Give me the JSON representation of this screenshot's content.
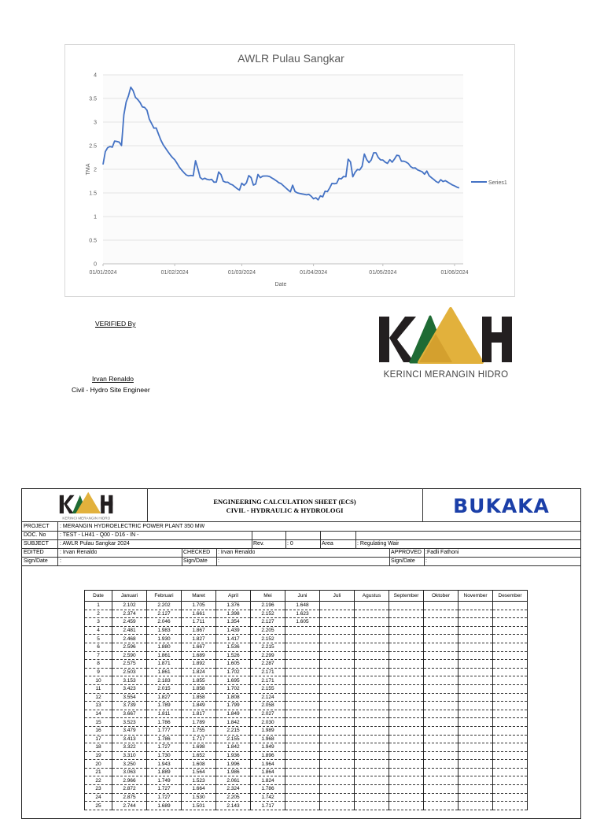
{
  "chart_data": {
    "type": "line",
    "title": "AWLR  Pulau Sangkar",
    "xlabel": "Date",
    "ylabel": "TMA",
    "ylim": [
      0,
      4
    ],
    "yticks": [
      "0",
      "0.5",
      "1",
      "1.5",
      "2",
      "2.5",
      "3",
      "3.5",
      "4"
    ],
    "xticks": [
      "01/01/2024",
      "01/02/2024",
      "01/03/2024",
      "01/04/2024",
      "01/05/2024",
      "01/06/2024"
    ],
    "grid": true,
    "legend": "right",
    "series": [
      {
        "name": "Series1",
        "color": "#4472c4",
        "x": [
          "2024-01-01",
          "2024-01-02",
          "2024-01-03",
          "2024-01-04",
          "2024-01-05",
          "2024-01-06",
          "2024-01-07",
          "2024-01-08",
          "2024-01-09",
          "2024-01-10",
          "2024-01-11",
          "2024-01-12",
          "2024-01-13",
          "2024-01-14",
          "2024-01-15",
          "2024-01-16",
          "2024-01-17",
          "2024-01-18",
          "2024-01-19",
          "2024-01-20",
          "2024-01-21",
          "2024-01-22",
          "2024-01-23",
          "2024-01-24",
          "2024-01-25",
          "2024-01-26",
          "2024-01-27",
          "2024-01-28",
          "2024-01-29",
          "2024-01-30",
          "2024-01-31",
          "2024-02-01",
          "2024-02-02",
          "2024-02-03",
          "2024-02-04",
          "2024-02-05",
          "2024-02-06",
          "2024-02-07",
          "2024-02-08",
          "2024-02-09",
          "2024-02-10",
          "2024-02-11",
          "2024-02-12",
          "2024-02-13",
          "2024-02-14",
          "2024-02-15",
          "2024-02-16",
          "2024-02-17",
          "2024-02-18",
          "2024-02-19",
          "2024-02-20",
          "2024-02-21",
          "2024-02-22",
          "2024-02-23",
          "2024-02-24",
          "2024-02-25",
          "2024-02-26",
          "2024-02-27",
          "2024-02-28",
          "2024-02-29",
          "2024-03-01",
          "2024-03-02",
          "2024-03-03",
          "2024-03-04",
          "2024-03-05",
          "2024-03-06",
          "2024-03-07",
          "2024-03-08",
          "2024-03-09",
          "2024-03-10",
          "2024-03-11",
          "2024-03-12",
          "2024-03-13",
          "2024-03-14",
          "2024-03-15",
          "2024-03-16",
          "2024-03-17",
          "2024-03-18",
          "2024-03-19",
          "2024-03-20",
          "2024-03-21",
          "2024-03-22",
          "2024-03-23",
          "2024-03-24",
          "2024-03-25",
          "2024-03-26",
          "2024-03-27",
          "2024-03-28",
          "2024-03-29",
          "2024-03-30",
          "2024-03-31",
          "2024-04-01",
          "2024-04-02",
          "2024-04-03",
          "2024-04-04",
          "2024-04-05",
          "2024-04-06",
          "2024-04-07",
          "2024-04-08",
          "2024-04-09",
          "2024-04-10",
          "2024-04-11",
          "2024-04-12",
          "2024-04-13",
          "2024-04-14",
          "2024-04-15",
          "2024-04-16",
          "2024-04-17",
          "2024-04-18",
          "2024-04-19",
          "2024-04-20",
          "2024-04-21",
          "2024-04-22",
          "2024-04-23",
          "2024-04-24",
          "2024-04-25",
          "2024-04-26",
          "2024-04-27",
          "2024-04-28",
          "2024-04-29",
          "2024-04-30",
          "2024-05-01",
          "2024-05-02",
          "2024-05-03",
          "2024-05-04",
          "2024-05-05",
          "2024-05-06",
          "2024-05-07",
          "2024-05-08",
          "2024-05-09",
          "2024-05-10",
          "2024-05-11",
          "2024-05-12",
          "2024-05-13",
          "2024-05-14",
          "2024-05-15",
          "2024-05-16",
          "2024-05-17",
          "2024-05-18",
          "2024-05-19",
          "2024-05-20",
          "2024-05-21",
          "2024-05-22",
          "2024-05-23",
          "2024-05-24",
          "2024-05-25",
          "2024-05-26",
          "2024-05-27",
          "2024-05-28",
          "2024-05-29",
          "2024-05-30",
          "2024-05-31",
          "2024-06-01",
          "2024-06-02",
          "2024-06-03"
        ],
        "y": [
          2.102,
          2.374,
          2.459,
          2.481,
          2.468,
          2.596,
          2.59,
          2.575,
          2.503,
          3.153,
          3.423,
          3.554,
          3.739,
          3.667,
          3.523,
          3.479,
          3.413,
          3.322,
          3.31,
          3.25,
          3.063,
          2.966,
          2.872,
          2.875,
          2.744,
          2.62,
          2.52,
          2.45,
          2.38,
          2.31,
          2.25,
          2.202,
          2.127,
          2.046,
          1.983,
          1.93,
          1.88,
          1.861,
          1.871,
          1.861,
          2.183,
          2.015,
          1.827,
          1.789,
          1.811,
          1.786,
          1.777,
          1.786,
          1.727,
          1.73,
          1.943,
          1.889,
          1.749,
          1.727,
          1.727,
          1.689,
          1.67,
          1.63,
          1.59,
          1.56,
          1.705,
          1.661,
          1.711,
          1.867,
          1.827,
          1.667,
          1.689,
          1.892,
          1.824,
          1.855,
          1.858,
          1.858,
          1.849,
          1.817,
          1.789,
          1.755,
          1.717,
          1.698,
          1.652,
          1.608,
          1.564,
          1.523,
          1.664,
          1.53,
          1.501,
          1.49,
          1.48,
          1.47,
          1.46,
          1.47,
          1.43,
          1.376,
          1.398,
          1.354,
          1.439,
          1.417,
          1.536,
          1.526,
          1.605,
          1.702,
          1.695,
          1.702,
          1.808,
          1.799,
          1.849,
          1.842,
          2.215,
          2.155,
          1.842,
          1.936,
          1.996,
          1.986,
          2.061,
          2.324,
          2.205,
          2.143,
          2.2,
          2.35,
          2.35,
          2.25,
          2.2,
          2.196,
          2.152,
          2.127,
          2.205,
          2.152,
          2.215,
          2.299,
          2.287,
          2.171,
          2.171,
          2.155,
          2.124,
          2.058,
          2.027,
          2.03,
          1.989,
          1.968,
          1.949,
          1.896,
          1.964,
          1.864,
          1.824,
          1.786,
          1.742,
          1.717,
          1.78,
          1.74,
          1.76,
          1.73,
          1.7,
          1.67,
          1.648,
          1.623,
          1.605
        ]
      }
    ]
  },
  "verification": {
    "label": "VERIFIED By",
    "name": "Irvan Renaldo",
    "role": "Civil - Hydro Site Engineer"
  },
  "logo": {
    "text": "KERINCI MERANGIN HIDRO",
    "dark": "#231f20",
    "green": "#1f6b34",
    "yellow": "#e2b13c"
  },
  "sheet": {
    "title1": "ENGINEERING CALCULATION SHEET (ECS)",
    "title2": "CIVIL - HYDRAULIC & HYDROLOGI",
    "partner_logo": "BUKAKA",
    "project_label": "PROJECT",
    "project_value": ": MERANGIN HYDROELECTRIC POWER PLANT 350 MW",
    "doc_label": "DOC. No",
    "doc_value": ": TEST - LH41 - Q00 - D16 - IN -",
    "subject_label": "SUBJECT",
    "subject_value": ": AWLR Pulau Sangkar 2024",
    "rev_label": "Rev.",
    "rev_value": ": 0",
    "area_label": "Area",
    "area_value": ": Regulating Wair",
    "edited_label": "EDITED",
    "edited_value": ": Irvan Renaldo",
    "checked_label": "CHECKED",
    "checked_value": ": Irvan Renaldo",
    "approved_label": "APPROVED",
    "approved_value": ":Fadli Fathoni",
    "sign_label": "Sign/Date",
    "sign_value": ":"
  },
  "table": {
    "columns": [
      "Date",
      "Januari",
      "Februari",
      "Maret",
      "April",
      "Mei",
      "Juni",
      "Juli",
      "Agustus",
      "September",
      "Oktober",
      "November",
      "Desember"
    ],
    "rows": [
      [
        "1",
        "2.102",
        "2.202",
        "1.705",
        "1.376",
        "2.196",
        "1.648"
      ],
      [
        "2",
        "2.374",
        "2.127",
        "1.661",
        "1.398",
        "2.152",
        "1.623"
      ],
      [
        "3",
        "2.459",
        "2.046",
        "1.711",
        "1.354",
        "2.127",
        "1.605"
      ],
      [
        "4",
        "2.481",
        "1.983",
        "1.867",
        "1.439",
        "2.205"
      ],
      [
        "5",
        "2.468",
        "1.930",
        "1.827",
        "1.417",
        "2.152"
      ],
      [
        "6",
        "2.596",
        "1.880",
        "1.667",
        "1.536",
        "2.215"
      ],
      [
        "7",
        "2.590",
        "1.861",
        "1.689",
        "1.526",
        "2.299"
      ],
      [
        "8",
        "2.575",
        "1.871",
        "1.892",
        "1.605",
        "2.287"
      ],
      [
        "9",
        "2.503",
        "1.861",
        "1.824",
        "1.702",
        "2.171"
      ],
      [
        "10",
        "3.153",
        "2.183",
        "1.855",
        "1.695",
        "2.171"
      ],
      [
        "11",
        "3.423",
        "2.015",
        "1.858",
        "1.702",
        "2.155"
      ],
      [
        "12",
        "3.554",
        "1.827",
        "1.858",
        "1.808",
        "2.124"
      ],
      [
        "13",
        "3.739",
        "1.789",
        "1.849",
        "1.799",
        "2.058"
      ],
      [
        "14",
        "3.667",
        "1.811",
        "1.817",
        "1.849",
        "2.027"
      ],
      [
        "15",
        "3.523",
        "1.786",
        "1.789",
        "1.842",
        "2.030"
      ],
      [
        "16",
        "3.479",
        "1.777",
        "1.755",
        "2.215",
        "1.989"
      ],
      [
        "17",
        "3.413",
        "1.786",
        "1.717",
        "2.155",
        "1.968"
      ],
      [
        "18",
        "3.322",
        "1.727",
        "1.698",
        "1.842",
        "1.949"
      ],
      [
        "19",
        "3.310",
        "1.730",
        "1.652",
        "1.936",
        "1.896"
      ],
      [
        "20",
        "3.250",
        "1.943",
        "1.608",
        "1.996",
        "1.964"
      ],
      [
        "21",
        "3.063",
        "1.889",
        "1.564",
        "1.986",
        "1.864"
      ],
      [
        "22",
        "2.966",
        "1.749",
        "1.523",
        "2.061",
        "1.824"
      ],
      [
        "23",
        "2.872",
        "1.727",
        "1.664",
        "2.324",
        "1.786"
      ],
      [
        "24",
        "2.875",
        "1.727",
        "1.530",
        "2.205",
        "1.742"
      ],
      [
        "25",
        "2.744",
        "1.689",
        "1.501",
        "2.143",
        "1.717"
      ]
    ]
  }
}
